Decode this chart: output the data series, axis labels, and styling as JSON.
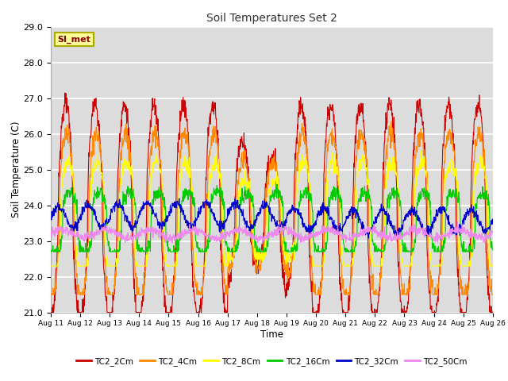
{
  "title": "Soil Temperatures Set 2",
  "xlabel": "Time",
  "ylabel": "Soil Temperature (C)",
  "ylim": [
    21.0,
    29.0
  ],
  "yticks": [
    21.0,
    22.0,
    23.0,
    24.0,
    25.0,
    26.0,
    27.0,
    28.0,
    29.0
  ],
  "x_labels": [
    "Aug 11",
    "Aug 12",
    "Aug 13",
    "Aug 14",
    "Aug 15",
    "Aug 16",
    "Aug 17",
    "Aug 18",
    "Aug 19",
    "Aug 20",
    "Aug 21",
    "Aug 22",
    "Aug 23",
    "Aug 24",
    "Aug 25",
    "Aug 26"
  ],
  "series_colors": [
    "#cc0000",
    "#ff8800",
    "#ffff00",
    "#00cc00",
    "#0000cc",
    "#ee88ee"
  ],
  "series_names": [
    "TC2_2Cm",
    "TC2_4Cm",
    "TC2_8Cm",
    "TC2_16Cm",
    "TC2_32Cm",
    "TC2_50Cm"
  ],
  "annotation_text": "SI_met",
  "annotation_bg": "#ffff99",
  "annotation_border": "#aaaa00",
  "plot_bg": "#dcdcdc",
  "fig_bg": "#ffffff",
  "grid_color": "#ffffff",
  "n_points": 1440
}
